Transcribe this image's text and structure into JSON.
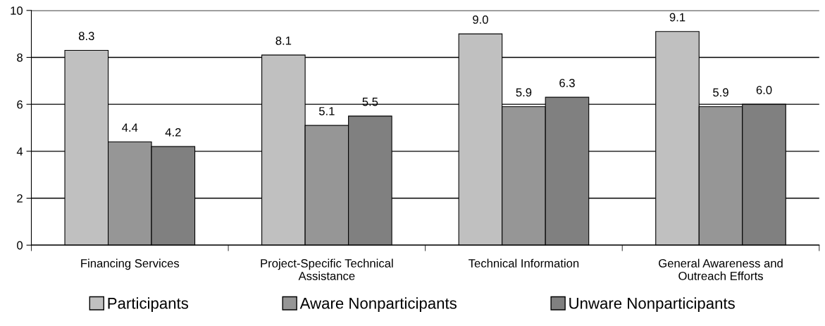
{
  "chart_data": {
    "type": "bar",
    "categories": [
      "Financing Services",
      "Project-Specific Technical\nAssistance",
      "Technical Information",
      "General Awareness and\nOutreach Efforts"
    ],
    "series": [
      {
        "name": "Participants",
        "color": "#c0c0c0",
        "values": [
          8.3,
          8.1,
          9.0,
          9.1
        ],
        "value_labels": [
          "8.3",
          "8.1",
          "9.0",
          "9.1"
        ]
      },
      {
        "name": "Aware Nonparticipants",
        "color": "#969696",
        "values": [
          4.4,
          5.1,
          5.9,
          5.9
        ],
        "value_labels": [
          "4.4",
          "5.1",
          "5.9",
          "5.9"
        ]
      },
      {
        "name": "Unware Nonparticipants",
        "color": "#808080",
        "values": [
          4.2,
          5.5,
          6.3,
          6.0
        ],
        "value_labels": [
          "4.2",
          "5.5",
          "6.3",
          "6.0"
        ]
      }
    ],
    "ylim": [
      0,
      10
    ],
    "yticks": [
      0,
      2,
      4,
      6,
      8,
      10
    ],
    "grid": "y",
    "legend": "bottom"
  }
}
